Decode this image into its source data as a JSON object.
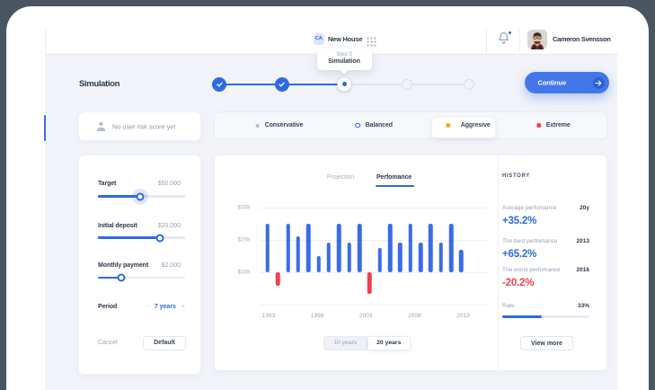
{
  "theme": {
    "outer_background": "#4c5a64",
    "content_background": "#f1f3f8",
    "accent_blue": "#2f6ae3",
    "bar_blue": "#3a6ce6",
    "bar_red": "#ef4050",
    "warning_orange": "#f6a823",
    "danger_red": "#f43f4f",
    "text_dark": "#2e3949",
    "text_gray": "#9aa3b6"
  },
  "header": {
    "project_badge": "CA",
    "project_name": "New House",
    "user_name": "Cameron Svensson"
  },
  "tooltip": {
    "step": "Step 3",
    "title": "Simulation"
  },
  "page": {
    "title": "Simulation"
  },
  "stepper": {
    "states": [
      "done",
      "done",
      "current",
      "todo",
      "todo"
    ]
  },
  "continue_button": {
    "label": "Continue"
  },
  "risk_score_card": {
    "text": "No user risk score yet"
  },
  "risk_selector": {
    "options": [
      {
        "label": "Conservative",
        "dot_color": "#b4bbc9",
        "type": "dot",
        "selected": false
      },
      {
        "label": "Balanced",
        "dot_color": "#2563eb",
        "type": "radio",
        "selected": false
      },
      {
        "label": "Aggresive",
        "dot_color": "#f6a823",
        "type": "dot",
        "selected": true
      },
      {
        "label": "Extreme",
        "dot_color": "#f43f4f",
        "type": "dot",
        "selected": false
      }
    ]
  },
  "controls": {
    "sliders": [
      {
        "label": "Target",
        "value": "$50,000",
        "percent": 48.5,
        "halo": true
      },
      {
        "label": "Initial deposit",
        "value": "$20,000",
        "percent": 71,
        "halo": false
      },
      {
        "label": "Monthly payment",
        "value": "$2,000",
        "percent": 27,
        "halo": false
      }
    ],
    "period": {
      "label": "Period",
      "minus": "-",
      "value": "7 years",
      "plus": "+"
    },
    "cancel_label": "Cancel",
    "default_label": "Default"
  },
  "chart_tabs": [
    {
      "label": "Projection",
      "active": false
    },
    {
      "label": "Perfomance",
      "active": true
    }
  ],
  "chart_data": {
    "type": "bar",
    "title": "Perfomance",
    "unit": "thousand dollars",
    "baseline_value": 10,
    "ylim": [
      0,
      33
    ],
    "y_ticks": [
      "$30k",
      "$20k",
      "$10k"
    ],
    "y_tick_values": [
      30,
      20,
      10
    ],
    "x_labels": [
      "1993",
      "1998",
      "2003",
      "2008",
      "2013"
    ],
    "grid": true,
    "bars": [
      {
        "value": 25,
        "kind": "gain"
      },
      {
        "value": 6,
        "kind": "loss"
      },
      {
        "value": 25,
        "kind": "gain"
      },
      {
        "value": 21,
        "kind": "gain"
      },
      {
        "value": 25,
        "kind": "gain"
      },
      {
        "value": 15,
        "kind": "gain"
      },
      {
        "value": 19,
        "kind": "gain"
      },
      {
        "value": 25,
        "kind": "gain"
      },
      {
        "value": 19,
        "kind": "gain"
      },
      {
        "value": 25,
        "kind": "gain"
      },
      {
        "value": 3.5,
        "kind": "loss"
      },
      {
        "value": 17.5,
        "kind": "gain"
      },
      {
        "value": 25,
        "kind": "gain"
      },
      {
        "value": 19,
        "kind": "gain"
      },
      {
        "value": 25,
        "kind": "gain"
      },
      {
        "value": 19,
        "kind": "gain"
      },
      {
        "value": 25,
        "kind": "gain"
      },
      {
        "value": 19,
        "kind": "gain"
      },
      {
        "value": 25,
        "kind": "gain"
      },
      {
        "value": 17,
        "kind": "gain"
      }
    ]
  },
  "range_toggle": [
    {
      "label": "10 years",
      "selected": false
    },
    {
      "label": "20 years",
      "selected": true
    }
  ],
  "history": {
    "title": "HISTORY",
    "items": [
      {
        "label": "Average perfomance",
        "tag": "20y",
        "value": "+35.2%",
        "color": "blue"
      },
      {
        "label": "The best perfomance",
        "tag": "2013",
        "value": "+65.2%",
        "color": "blue"
      },
      {
        "label": "The worst perfomance",
        "tag": "2016",
        "value": "-20.2%",
        "color": "red"
      }
    ],
    "rate": {
      "label": "Rate",
      "value": "33%",
      "percent": 45
    },
    "view_more_label": "View more"
  }
}
